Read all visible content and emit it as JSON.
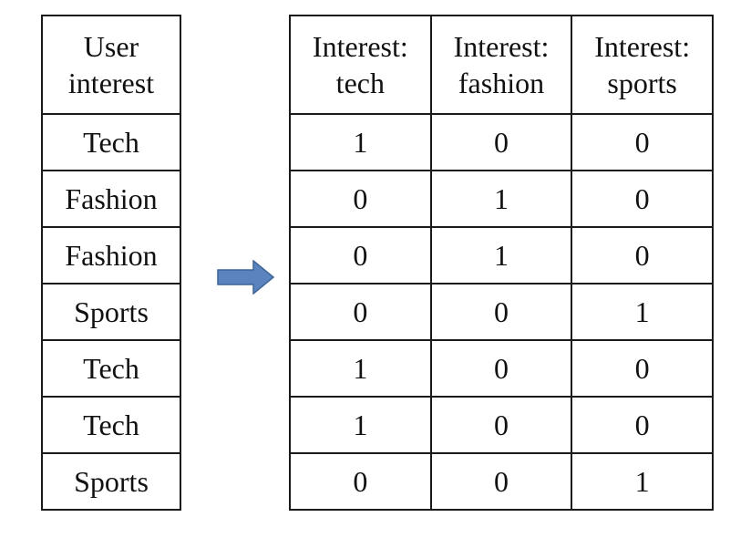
{
  "left_table": {
    "header": "User\ninterest",
    "rows": [
      "Tech",
      "Fashion",
      "Fashion",
      "Sports",
      "Tech",
      "Tech",
      "Sports"
    ]
  },
  "right_table": {
    "headers": [
      "Interest:\ntech",
      "Interest:\nfashion",
      "Interest:\nsports"
    ],
    "rows": [
      [
        "1",
        "0",
        "0"
      ],
      [
        "0",
        "1",
        "0"
      ],
      [
        "0",
        "1",
        "0"
      ],
      [
        "0",
        "0",
        "1"
      ],
      [
        "1",
        "0",
        "0"
      ],
      [
        "1",
        "0",
        "0"
      ],
      [
        "0",
        "0",
        "1"
      ]
    ]
  },
  "arrow": {
    "icon": "right-arrow-icon",
    "color": "#5B84BE"
  }
}
